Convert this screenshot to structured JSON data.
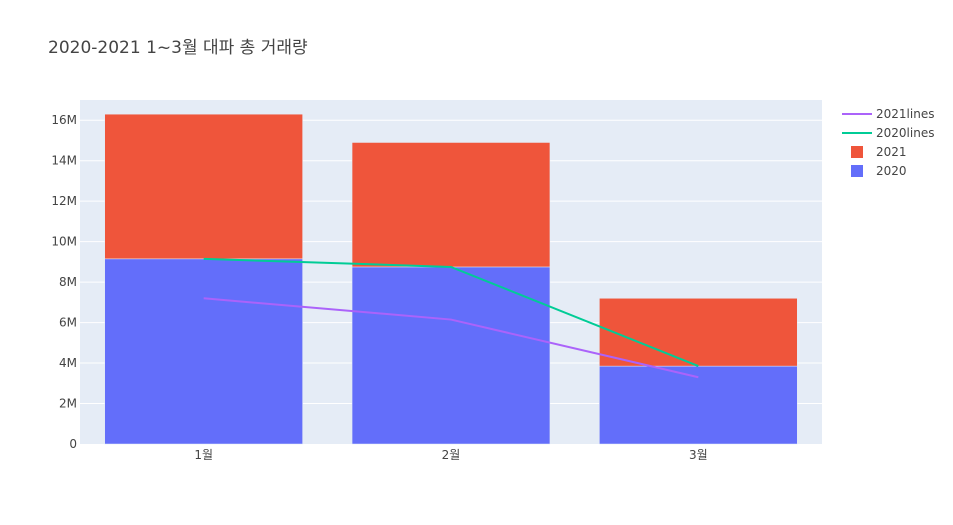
{
  "chart_data": {
    "type": "bar",
    "title": "2020-2021 1~3월 대파 총 거래량",
    "categories": [
      "1월",
      "2월",
      "3월"
    ],
    "ylim": [
      0,
      17000000
    ],
    "yticks": [
      {
        "value": 0,
        "label": "0"
      },
      {
        "value": 2000000,
        "label": "2M"
      },
      {
        "value": 4000000,
        "label": "4M"
      },
      {
        "value": 6000000,
        "label": "6M"
      },
      {
        "value": 8000000,
        "label": "8M"
      },
      {
        "value": 10000000,
        "label": "10M"
      },
      {
        "value": 12000000,
        "label": "12M"
      },
      {
        "value": 14000000,
        "label": "14M"
      },
      {
        "value": 16000000,
        "label": "16M"
      }
    ],
    "grid": true,
    "legend_position": "top-right",
    "barmode": "stack",
    "series": [
      {
        "name": "2020",
        "type": "bar",
        "color": "#636efa",
        "values": [
          9150000,
          8750000,
          3850000
        ]
      },
      {
        "name": "2021",
        "type": "bar",
        "color": "#ef553b",
        "values": [
          7150000,
          6150000,
          3350000
        ]
      },
      {
        "name": "2020lines",
        "type": "line",
        "color": "#00cc96",
        "values": [
          9150000,
          8750000,
          3850000
        ]
      },
      {
        "name": "2021lines",
        "type": "line",
        "color": "#ab63fa",
        "values": [
          7200000,
          6150000,
          3300000
        ]
      }
    ],
    "legend_order": [
      "2021lines",
      "2020lines",
      "2021",
      "2020"
    ]
  }
}
